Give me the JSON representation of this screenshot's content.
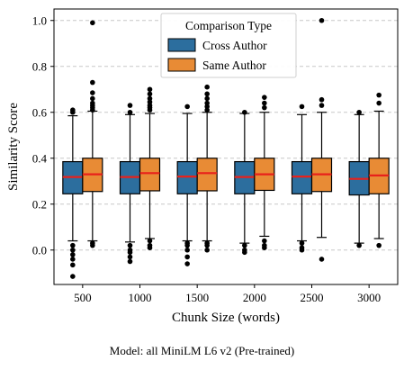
{
  "chart_data": {
    "type": "box",
    "title": "",
    "xlabel": "Chunk Size (words)",
    "ylabel": "Similarity Score",
    "ylim": [
      -0.15,
      1.05
    ],
    "yticks": [
      0.0,
      0.2,
      0.4,
      0.6,
      0.8,
      1.0
    ],
    "ytick_labels": [
      "0.0",
      "0.2",
      "0.4",
      "0.6",
      "0.8",
      "1.0"
    ],
    "grid": "horizontal dashed",
    "legend": {
      "title": "Comparison Type",
      "position": "top-center"
    },
    "categories": [
      "500",
      "1000",
      "1500",
      "2000",
      "2500",
      "3000"
    ],
    "series": [
      {
        "name": "Cross Author",
        "color": "#2c6e9e",
        "boxes": [
          {
            "whislo": 0.04,
            "q1": 0.245,
            "med": 0.318,
            "q3": 0.385,
            "whishi": 0.585,
            "fliers": [
              0.61,
              0.6,
              0.02,
              0.0,
              -0.02,
              -0.04,
              -0.065,
              -0.115
            ]
          },
          {
            "whislo": 0.035,
            "q1": 0.245,
            "med": 0.318,
            "q3": 0.385,
            "whishi": 0.59,
            "fliers": [
              0.63,
              0.6,
              0.02,
              0.0,
              -0.01,
              -0.03,
              -0.05
            ]
          },
          {
            "whislo": 0.04,
            "q1": 0.245,
            "med": 0.32,
            "q3": 0.385,
            "whishi": 0.595,
            "fliers": [
              0.625,
              0.03,
              0.02,
              0.0,
              -0.03,
              -0.06
            ]
          },
          {
            "whislo": 0.03,
            "q1": 0.245,
            "med": 0.318,
            "q3": 0.385,
            "whishi": 0.595,
            "fliers": [
              0.6,
              0.02,
              0.0,
              -0.01
            ]
          },
          {
            "whislo": 0.04,
            "q1": 0.245,
            "med": 0.32,
            "q3": 0.385,
            "whishi": 0.59,
            "fliers": [
              0.625,
              0.03,
              0.01,
              0.0
            ]
          },
          {
            "whislo": 0.03,
            "q1": 0.24,
            "med": 0.31,
            "q3": 0.385,
            "whishi": 0.59,
            "fliers": [
              0.6,
              0.02
            ]
          }
        ]
      },
      {
        "name": "Same Author",
        "color": "#e88b35",
        "boxes": [
          {
            "whislo": 0.04,
            "q1": 0.255,
            "med": 0.33,
            "q3": 0.4,
            "whishi": 0.605,
            "fliers": [
              0.99,
              0.73,
              0.685,
              0.66,
              0.64,
              0.63,
              0.62,
              0.61,
              0.03,
              0.02
            ]
          },
          {
            "whislo": 0.05,
            "q1": 0.258,
            "med": 0.335,
            "q3": 0.4,
            "whishi": 0.595,
            "fliers": [
              0.7,
              0.68,
              0.66,
              0.645,
              0.63,
              0.62,
              0.61,
              0.04,
              0.02,
              0.01
            ]
          },
          {
            "whislo": 0.04,
            "q1": 0.258,
            "med": 0.335,
            "q3": 0.4,
            "whishi": 0.6,
            "fliers": [
              0.71,
              0.68,
              0.66,
              0.64,
              0.625,
              0.61,
              0.03,
              0.02,
              0.0
            ]
          },
          {
            "whislo": 0.06,
            "q1": 0.26,
            "med": 0.33,
            "q3": 0.4,
            "whishi": 0.6,
            "fliers": [
              0.665,
              0.64,
              0.62,
              0.04,
              0.02,
              0.01
            ]
          },
          {
            "whislo": 0.055,
            "q1": 0.255,
            "med": 0.33,
            "q3": 0.4,
            "whishi": 0.6,
            "fliers": [
              1.0,
              0.655,
              0.63,
              -0.04
            ]
          },
          {
            "whislo": 0.05,
            "q1": 0.245,
            "med": 0.325,
            "q3": 0.4,
            "whishi": 0.605,
            "fliers": [
              0.675,
              0.64,
              0.02
            ]
          }
        ]
      }
    ],
    "median_color": "#e8211b"
  },
  "caption": "Model: all MiniLM L6 v2 (Pre-trained)"
}
